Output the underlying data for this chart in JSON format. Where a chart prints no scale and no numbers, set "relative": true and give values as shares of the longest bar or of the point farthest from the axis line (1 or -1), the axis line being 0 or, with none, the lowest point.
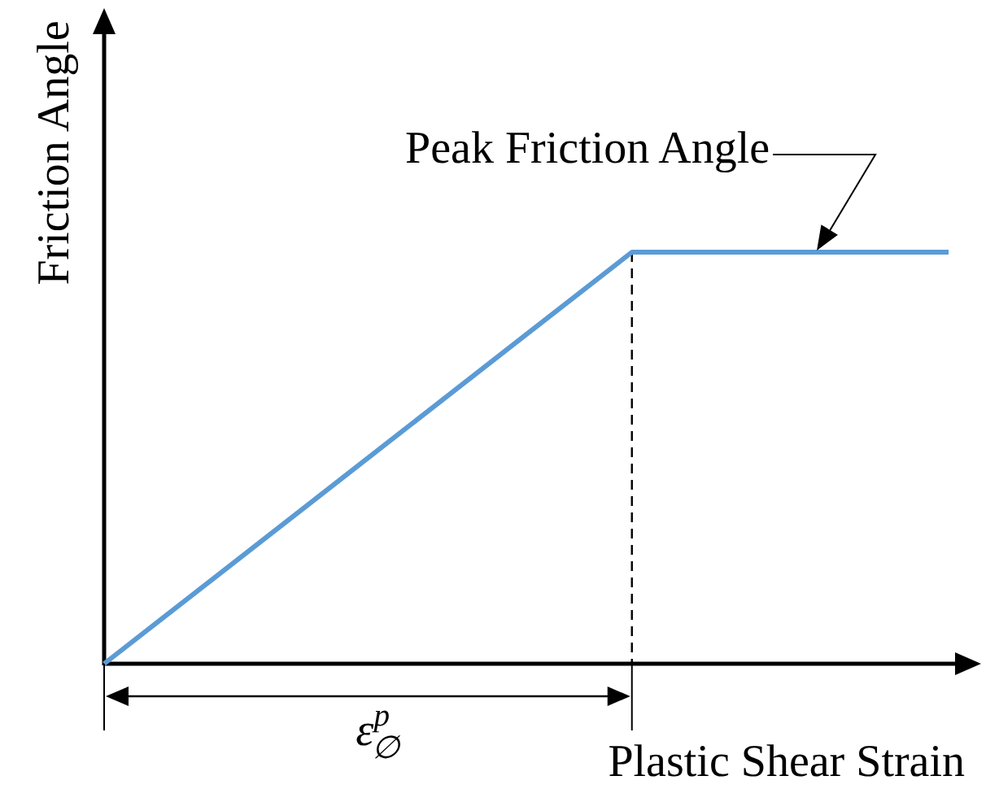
{
  "chart_data": {
    "type": "line",
    "relative": true,
    "xlabel": "Plastic Shear Strain",
    "ylabel": "Friction Angle",
    "categories": [
      null,
      null,
      null,
      null,
      null,
      null,
      null,
      null,
      null
    ],
    "series": [
      {
        "color": "#5b9bd5",
        "values": [
          0,
          0.2,
          0.4,
          0.6,
          0.8,
          1,
          1,
          1,
          1
        ]
      }
    ],
    "annotations": [
      "Peak Friction Angle",
      "ε$^{p}$$_{∅}$"
    ]
  }
}
